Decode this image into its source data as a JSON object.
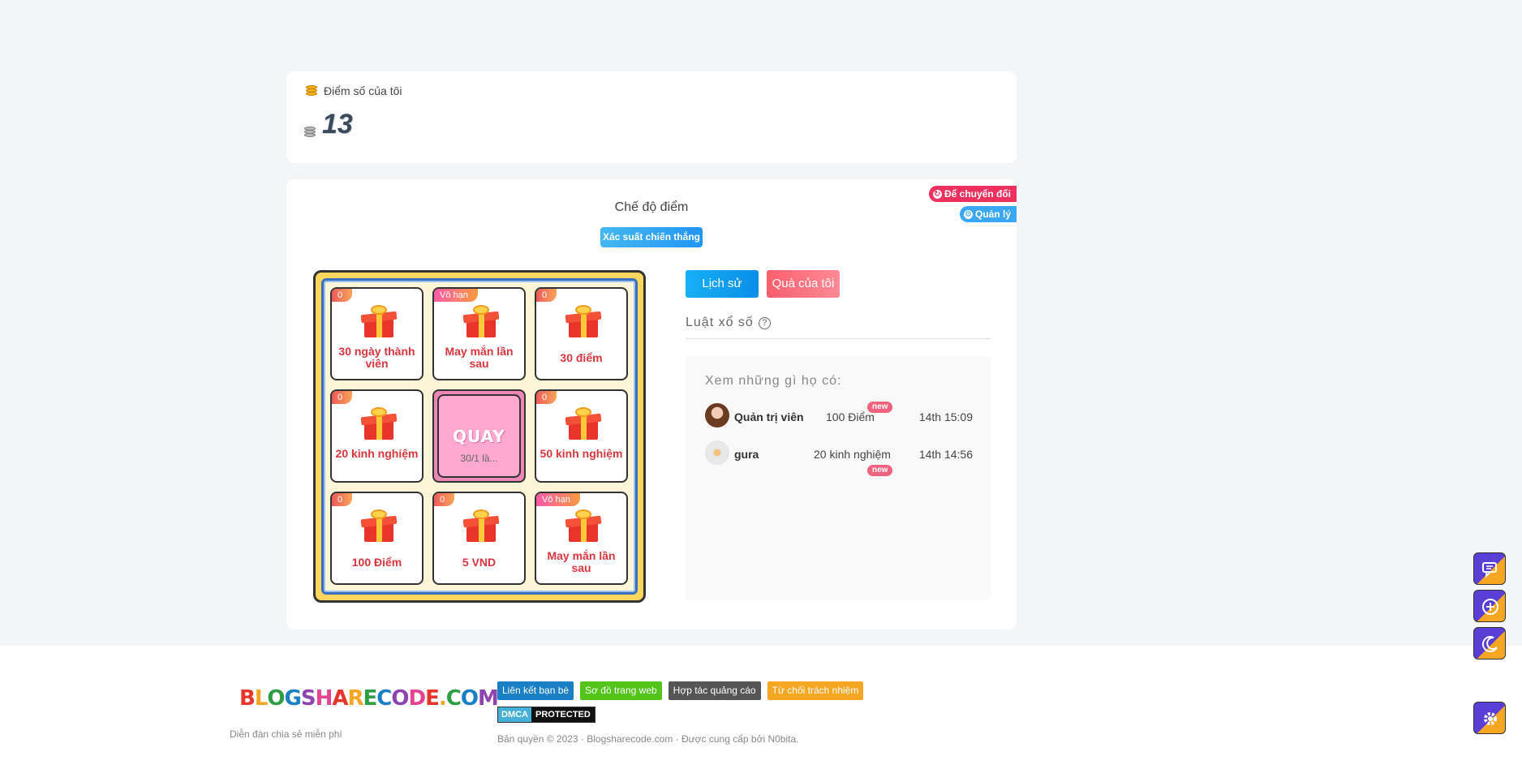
{
  "score": {
    "title": "Điểm số của tôi",
    "value": "13",
    "icon": "coins-icon"
  },
  "mode": {
    "title": "Chế độ điểm",
    "prob_button": "Xác suất chiến thắng",
    "convert_tag": "Để chuyển đổi",
    "admin_tag": "Quản lý"
  },
  "wheel": {
    "cells": [
      {
        "badge": "0",
        "name": "30 ngày thành viên"
      },
      {
        "badge": "Vô hạn",
        "name": "May mắn lần sau"
      },
      {
        "badge": "0",
        "name": "30 điểm"
      },
      {
        "badge": "0",
        "name": "20 kinh nghiệm"
      },
      {
        "badge": "0",
        "name": "50 kinh nghiệm"
      },
      {
        "badge": "0",
        "name": "100 Điểm"
      },
      {
        "badge": "0",
        "name": "5 VND"
      },
      {
        "badge": "Vô hạn",
        "name": "May mắn lần sau"
      }
    ],
    "spin_label": "QUAY",
    "spin_count": "30/1 lầ..."
  },
  "actions": {
    "history": "Lịch sử",
    "my_gifts": "Quà của tôi",
    "rules": "Luật xổ số"
  },
  "winners": {
    "title": "Xem những gì họ có:",
    "rows": [
      {
        "name": "Quản trị viên",
        "prize": "100 Điểm",
        "time": "14th 15:09",
        "badge": "new"
      },
      {
        "name": "gura",
        "prize": "20 kinh nghiệm",
        "time": "14th 14:56",
        "badge": "new"
      }
    ]
  },
  "footer": {
    "logo": "BLOGSHARECODE.COM",
    "slogan": "Diễn đàn chia sẻ miễn phí",
    "links": [
      "Liên kết bạn bè",
      "Sơ đồ trang web",
      "Hợp tác quảng cáo",
      "Từ chối trách nhiệm"
    ],
    "link_colors": [
      "#1a7fc4",
      "#52c41a",
      "#555555",
      "#f5a623"
    ],
    "dmca_left": "DMCA",
    "dmca_right": "PROTECTED",
    "copyright": "Bản quyền © 2023 · Blogsharecode.com · Được cung cấp bởi N0bita."
  },
  "floating": [
    "chat-icon",
    "plus-circle-icon",
    "moon-icon",
    "gear-icon"
  ]
}
